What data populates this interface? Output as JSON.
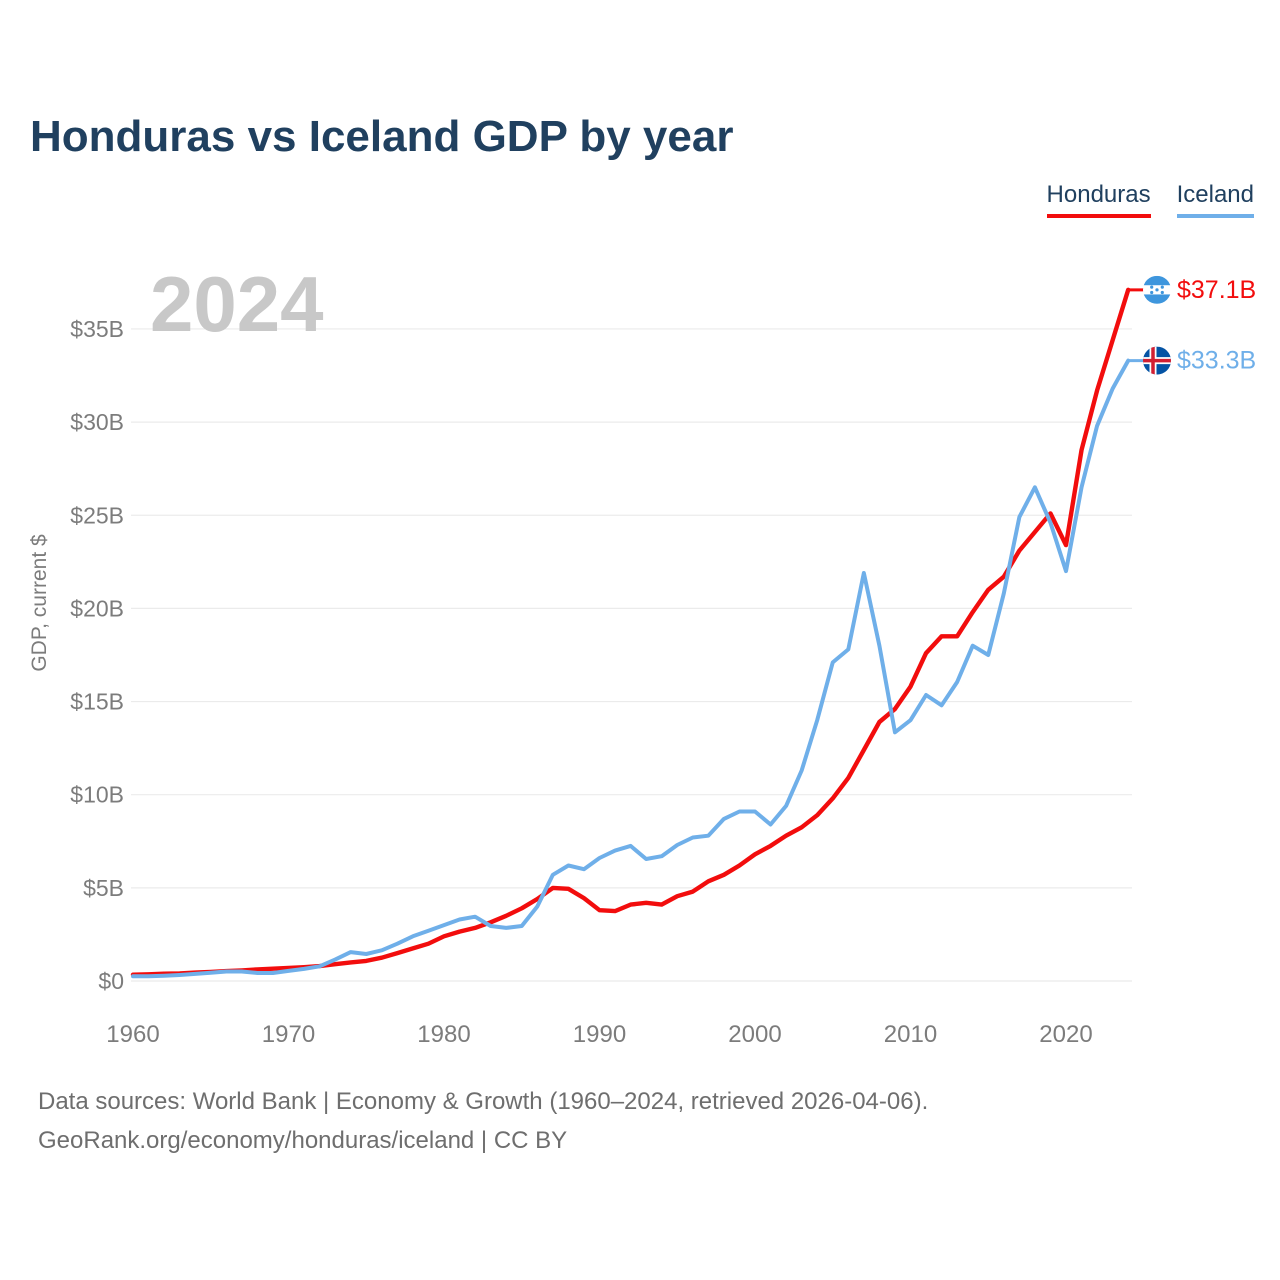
{
  "title": "Honduras vs Iceland GDP by year",
  "watermark": "2024",
  "legend": {
    "honduras": {
      "label": "Honduras",
      "color": "#f20d0d"
    },
    "iceland": {
      "label": "Iceland",
      "color": "#6fafe9"
    }
  },
  "y_axis": {
    "title": "GDP, current $",
    "ticks": [
      {
        "label": "$0",
        "value": 0
      },
      {
        "label": "$5B",
        "value": 5
      },
      {
        "label": "$10B",
        "value": 10
      },
      {
        "label": "$15B",
        "value": 15
      },
      {
        "label": "$20B",
        "value": 20
      },
      {
        "label": "$25B",
        "value": 25
      },
      {
        "label": "$30B",
        "value": 30
      },
      {
        "label": "$35B",
        "value": 35
      }
    ]
  },
  "x_axis": {
    "ticks": [
      {
        "label": "1960",
        "value": 1960
      },
      {
        "label": "1970",
        "value": 1970
      },
      {
        "label": "1980",
        "value": 1980
      },
      {
        "label": "1990",
        "value": 1990
      },
      {
        "label": "2000",
        "value": 2000
      },
      {
        "label": "2010",
        "value": 2010
      },
      {
        "label": "2020",
        "value": 2020
      }
    ]
  },
  "end_labels": {
    "honduras": {
      "text": "$37.1B"
    },
    "iceland": {
      "text": "$33.3B"
    }
  },
  "footer": {
    "line1": "Data sources: World Bank | Economy & Growth (1960–2024, retrieved 2026-04-06).",
    "line2": "GeoRank.org/economy/honduras/iceland | CC BY"
  },
  "chart_data": {
    "type": "line",
    "title": "Honduras vs Iceland GDP by year",
    "xlabel": "",
    "ylabel": "GDP, current $",
    "unit": "billion USD, current $",
    "xlim": [
      1960,
      2024
    ],
    "ylim": [
      0,
      37.5
    ],
    "grid": true,
    "legend_position": "top-right",
    "x": [
      1960,
      1961,
      1962,
      1963,
      1964,
      1965,
      1966,
      1967,
      1968,
      1969,
      1970,
      1971,
      1972,
      1973,
      1974,
      1975,
      1976,
      1977,
      1978,
      1979,
      1980,
      1981,
      1982,
      1983,
      1984,
      1985,
      1986,
      1987,
      1988,
      1989,
      1990,
      1991,
      1992,
      1993,
      1994,
      1995,
      1996,
      1997,
      1998,
      1999,
      2000,
      2001,
      2002,
      2003,
      2004,
      2005,
      2006,
      2007,
      2008,
      2009,
      2010,
      2011,
      2012,
      2013,
      2014,
      2015,
      2016,
      2017,
      2018,
      2019,
      2020,
      2021,
      2022,
      2023,
      2024
    ],
    "series": [
      {
        "key": "honduras",
        "name": "Honduras",
        "color": "#f20d0d",
        "end_value_label": "$37.1B",
        "values": [
          0.34,
          0.36,
          0.39,
          0.41,
          0.45,
          0.49,
          0.53,
          0.57,
          0.62,
          0.66,
          0.7,
          0.74,
          0.8,
          0.9,
          1.0,
          1.08,
          1.25,
          1.5,
          1.75,
          2.0,
          2.4,
          2.65,
          2.85,
          3.15,
          3.5,
          3.9,
          4.4,
          5.0,
          4.95,
          4.45,
          3.8,
          3.75,
          4.1,
          4.2,
          4.1,
          4.55,
          4.8,
          5.35,
          5.7,
          6.2,
          6.8,
          7.25,
          7.8,
          8.25,
          8.9,
          9.8,
          10.9,
          12.4,
          13.9,
          14.6,
          15.8,
          17.6,
          18.5,
          18.5,
          19.8,
          21.0,
          21.7,
          23.1,
          24.1,
          25.1,
          23.4,
          28.5,
          31.7,
          34.4,
          37.1
        ]
      },
      {
        "key": "iceland",
        "name": "Iceland",
        "color": "#6fafe9",
        "end_value_label": "$33.3B",
        "values": [
          0.25,
          0.25,
          0.28,
          0.32,
          0.38,
          0.44,
          0.51,
          0.51,
          0.43,
          0.43,
          0.54,
          0.65,
          0.79,
          1.15,
          1.55,
          1.45,
          1.65,
          2.0,
          2.4,
          2.7,
          3.0,
          3.3,
          3.45,
          2.95,
          2.85,
          2.95,
          4.0,
          5.7,
          6.2,
          6.0,
          6.6,
          7.0,
          7.25,
          6.55,
          6.7,
          7.3,
          7.7,
          7.8,
          8.7,
          9.1,
          9.1,
          8.4,
          9.4,
          11.3,
          14.0,
          17.1,
          17.8,
          21.9,
          18.0,
          13.35,
          14.0,
          15.35,
          14.8,
          16.05,
          18.0,
          17.5,
          20.8,
          24.9,
          26.5,
          24.6,
          22.0,
          26.5,
          29.8,
          31.8,
          33.3
        ]
      }
    ]
  }
}
